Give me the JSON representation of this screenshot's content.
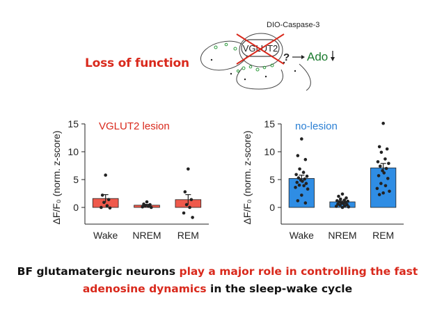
{
  "schematic": {
    "construct": "DIO-Caspase-3",
    "target": "VGLUT2",
    "question": "?",
    "output": "Ado",
    "output_direction": "down",
    "arrow_color": "#1a7a2e"
  },
  "loss_of_function": "Loss of function",
  "caption": {
    "part1": "BF glutamatergic neurons ",
    "part2": "play a major role in controlling the fast",
    "part3": "adenosine dynamics",
    "part4": " in the sleep-wake cycle"
  },
  "chart_data": [
    {
      "type": "bar",
      "title": "VGLUT2 lesion",
      "title_color": "#d9291c",
      "ylabel": "ΔF/F₀ (norm. z-score)",
      "ylim": [
        -3,
        15
      ],
      "yticks": [
        0,
        5,
        10,
        15
      ],
      "categories": [
        "Wake",
        "NREM",
        "REM"
      ],
      "values": [
        1.6,
        0.4,
        1.4
      ],
      "errors": [
        0.7,
        0.15,
        0.9
      ],
      "bar_color": "#ef5a4c",
      "points": [
        [
          5.8,
          2.2,
          1.4,
          0.9,
          0.3,
          0.0,
          -0.1
        ],
        [
          1.0,
          0.6,
          0.5,
          0.3,
          0.2,
          0.1,
          0.0
        ],
        [
          6.9,
          2.8,
          1.4,
          0.5,
          0.0,
          -1.0,
          -1.8
        ]
      ]
    },
    {
      "type": "bar",
      "title": "no-lesion",
      "title_color": "#2a7fd4",
      "ylabel": "ΔF/F₀ (norm. z-score)",
      "ylim": [
        -3,
        15
      ],
      "yticks": [
        0,
        5,
        10,
        15
      ],
      "categories": [
        "Wake",
        "NREM",
        "REM"
      ],
      "values": [
        5.2,
        1.0,
        7.1
      ],
      "errors": [
        0.6,
        0.15,
        0.8
      ],
      "bar_color": "#2f8de4",
      "points": [
        [
          12.3,
          9.3,
          8.6,
          6.9,
          6.3,
          5.9,
          5.6,
          5.3,
          5.1,
          4.9,
          4.7,
          4.5,
          4.3,
          4.0,
          3.9,
          3.6,
          3.3,
          2.2,
          1.2,
          0.8
        ],
        [
          2.4,
          2.0,
          1.7,
          1.5,
          1.3,
          1.2,
          1.1,
          1.0,
          0.9,
          0.8,
          0.7,
          0.6,
          0.5,
          0.4,
          0.3,
          0.2,
          0.1,
          0.0
        ],
        [
          15.1,
          10.9,
          10.5,
          9.9,
          8.7,
          8.2,
          7.9,
          7.4,
          7.0,
          6.6,
          6.2,
          5.7,
          5.2,
          4.3,
          3.9,
          3.4,
          2.9,
          2.6,
          2.3
        ]
      ]
    }
  ]
}
